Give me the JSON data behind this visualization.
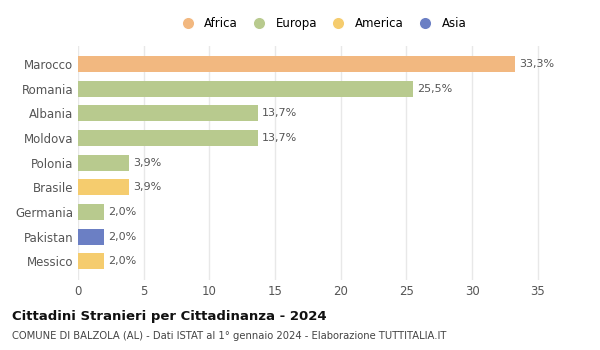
{
  "categories": [
    "Marocco",
    "Romania",
    "Albania",
    "Moldova",
    "Polonia",
    "Brasile",
    "Germania",
    "Pakistan",
    "Messico"
  ],
  "values": [
    33.3,
    25.5,
    13.7,
    13.7,
    3.9,
    3.9,
    2.0,
    2.0,
    2.0
  ],
  "labels": [
    "33,3%",
    "25,5%",
    "13,7%",
    "13,7%",
    "3,9%",
    "3,9%",
    "2,0%",
    "2,0%",
    "2,0%"
  ],
  "colors": [
    "#f2b880",
    "#b8ca8e",
    "#b8ca8e",
    "#b8ca8e",
    "#b8ca8e",
    "#f5cc6e",
    "#b8ca8e",
    "#6b7fc4",
    "#f5cc6e"
  ],
  "legend": [
    {
      "label": "Africa",
      "color": "#f2b880"
    },
    {
      "label": "Europa",
      "color": "#b8ca8e"
    },
    {
      "label": "America",
      "color": "#f5cc6e"
    },
    {
      "label": "Asia",
      "color": "#6b7fc4"
    }
  ],
  "xlim": [
    0,
    37
  ],
  "xticks": [
    0,
    5,
    10,
    15,
    20,
    25,
    30,
    35
  ],
  "title": "Cittadini Stranieri per Cittadinanza - 2024",
  "subtitle": "COMUNE DI BALZOLA (AL) - Dati ISTAT al 1° gennaio 2024 - Elaborazione TUTTITALIA.IT",
  "background_color": "#ffffff",
  "grid_color": "#e8e8e8"
}
